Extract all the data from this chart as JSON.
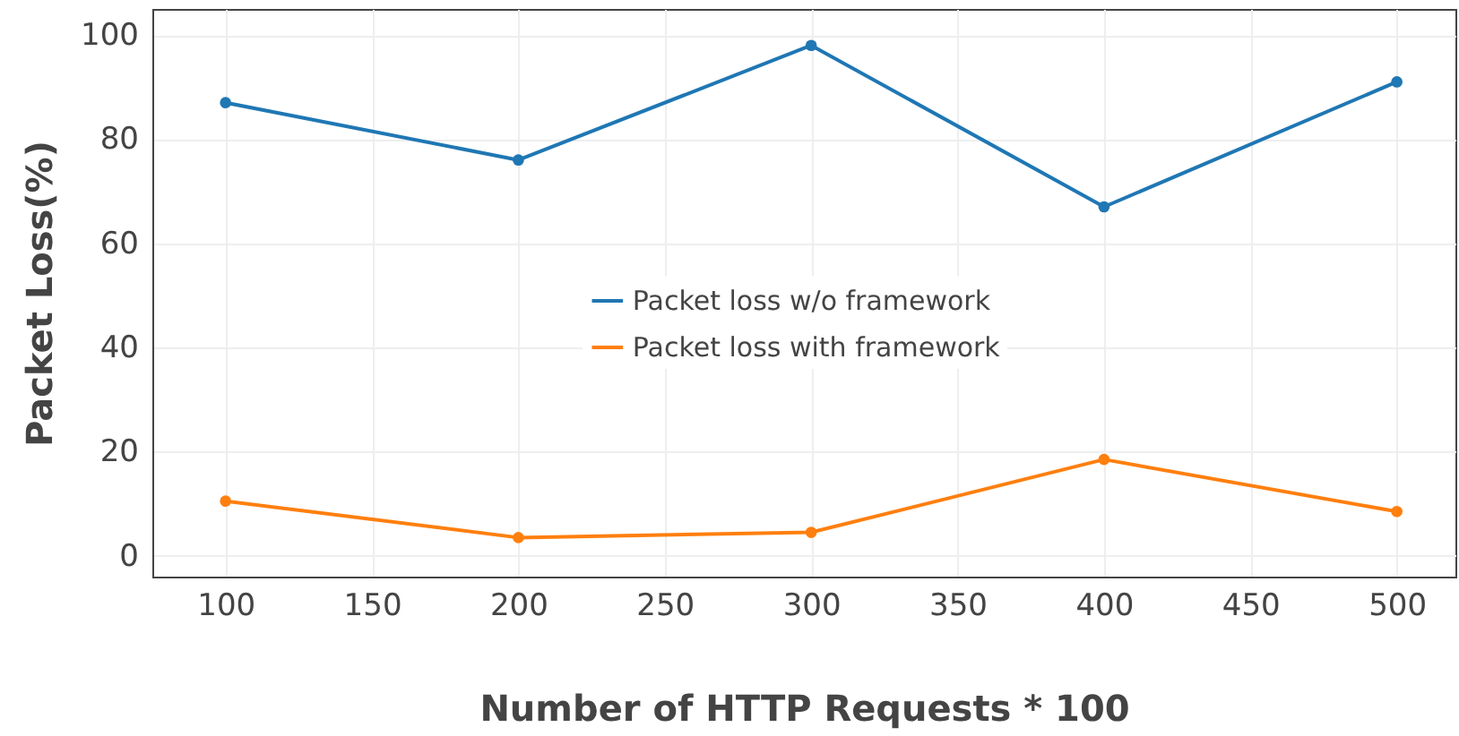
{
  "chart_data": {
    "type": "line",
    "xlabel": "Number of HTTP Requests * 100",
    "ylabel": "Packet Loss(%)",
    "x": [
      100,
      200,
      300,
      400,
      500
    ],
    "series": [
      {
        "name": "Packet loss w/o framework",
        "color": "#1f77b4",
        "values": [
          87,
          76,
          98,
          67,
          91
        ]
      },
      {
        "name": "Packet loss with framework",
        "color": "#ff7f0e",
        "values": [
          10.5,
          3.5,
          4.5,
          18.5,
          8.5
        ]
      }
    ],
    "xlim": [
      75,
      520
    ],
    "xticks": [
      100,
      150,
      200,
      250,
      300,
      350,
      400,
      450,
      500
    ],
    "ylim": [
      -4,
      105
    ],
    "yticks": [
      0,
      20,
      40,
      60,
      80,
      100
    ],
    "grid": true,
    "legend": "center",
    "marker": "circle",
    "line_style": "solid"
  }
}
